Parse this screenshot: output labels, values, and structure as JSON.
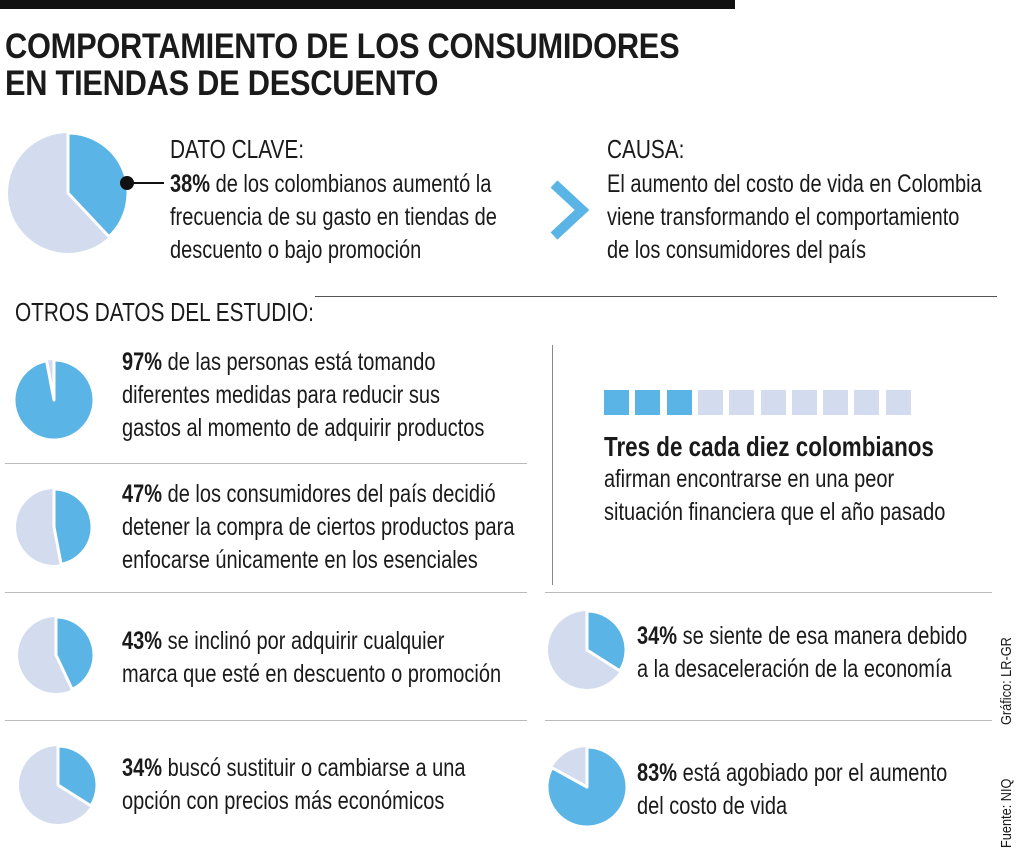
{
  "title": [
    "COMPORTAMIENTO DE LOS CONSUMIDORES",
    "EN TIENDAS DE DESCUENTO"
  ],
  "colors": {
    "accent": "#5ab4e6",
    "light": "#d3dcee",
    "text": "#1a1a1a"
  },
  "key": {
    "heading": "DATO CLAVE:",
    "pct": "38%",
    "lines": [
      " de los colombianos aumentó la",
      "frecuencia de su gasto en tiendas de",
      "descuento o bajo promoción"
    ]
  },
  "cause": {
    "heading": "CAUSA:",
    "lines": [
      "El aumento del costo de vida en Colombia",
      "viene transformando el comportamiento",
      "de los consumidores del país"
    ]
  },
  "others_heading": "OTROS DATOS DEL ESTUDIO:",
  "items": [
    {
      "pct": "97%",
      "lines": [
        " de las personas está tomando",
        "diferentes medidas para reducir sus",
        "gastos al momento de adquirir productos"
      ]
    },
    {
      "pct": "47%",
      "lines": [
        " de los consumidores del país decidió",
        "detener la compra de ciertos productos para",
        "enfocarse únicamente en los esenciales"
      ]
    },
    {
      "pct": "43%",
      "lines": [
        " se inclinó por adquirir cualquier",
        "marca que esté en descuento o promoción"
      ]
    },
    {
      "pct": "34%",
      "lines": [
        " buscó sustituir o cambiarse a una",
        "opción con precios más económicos"
      ]
    },
    {
      "pct": "34%",
      "lines": [
        " se siente de esa manera debido",
        "a la desaceleración de la economía"
      ]
    },
    {
      "pct": "83%",
      "lines": [
        " está agobiado por el aumento",
        "del costo de vida"
      ]
    }
  ],
  "ten": {
    "filled": 3,
    "total": 10,
    "heading": "Tres de cada diez colombianos",
    "lines": [
      "afirman encontrarse en una peor",
      "situación financiera que el año pasado"
    ]
  },
  "credits": {
    "graphic": "Gráfico: LR-GR",
    "source": "Fuente: NIQ"
  },
  "chart_data": {
    "type": "pie",
    "title": "Comportamiento de los consumidores en tiendas de descuento",
    "pies": [
      {
        "label": "Aumentó frecuencia de gasto en tiendas de descuento",
        "value": 38
      },
      {
        "label": "Tomando medidas para reducir gastos",
        "value": 97
      },
      {
        "label": "Detuvo compra de ciertos productos",
        "value": 47
      },
      {
        "label": "Adquirir cualquier marca en descuento",
        "value": 43
      },
      {
        "label": "Sustituir por opción más económica",
        "value": 34
      },
      {
        "label": "Por desaceleración de la economía",
        "value": 34
      },
      {
        "label": "Agobiado por aumento del costo de vida",
        "value": 83
      }
    ],
    "waffle": {
      "label": "Peor situación financiera que el año pasado",
      "value": 3,
      "of": 10
    }
  }
}
